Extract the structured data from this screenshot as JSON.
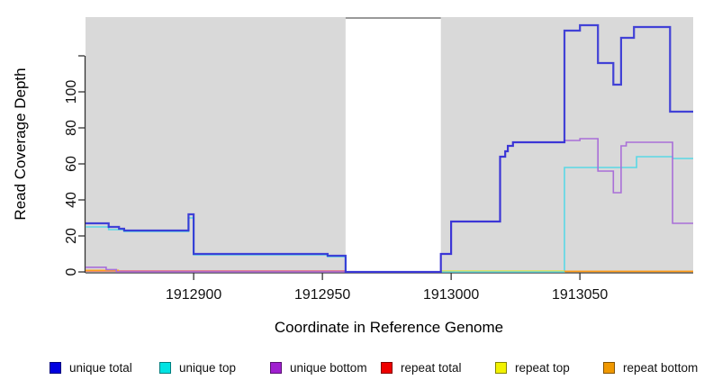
{
  "figure": {
    "xlabel": "Coordinate in Reference Genome",
    "ylabel": "Read Coverage Depth"
  },
  "chart_data": {
    "type": "line",
    "subtype": "step-function-coverage",
    "title": "",
    "xlabel": "Coordinate in Reference Genome",
    "ylabel": "Read Coverage Depth",
    "background_color": "#d9d9d9",
    "grid": false,
    "legend_position": "bottom",
    "x_axis": {
      "range": [
        1912858,
        1913094
      ],
      "ticks": [
        {
          "label": "1912900",
          "value": 1912900
        },
        {
          "label": "1912950",
          "value": 1912950
        },
        {
          "label": "1913000",
          "value": 1913000
        },
        {
          "label": "1913050",
          "value": 1913050
        }
      ]
    },
    "y_axis": {
      "range": [
        0,
        141
      ],
      "ticks": [
        {
          "label": "0",
          "value": 0
        },
        {
          "label": "20",
          "value": 20
        },
        {
          "label": "40",
          "value": 40
        },
        {
          "label": "60",
          "value": 60
        },
        {
          "label": "80",
          "value": 80
        },
        {
          "label": "100",
          "value": 100
        },
        {
          "label": "",
          "value": 120
        }
      ]
    },
    "no_data_region": {
      "start": 1912959,
      "end": 1912996,
      "fill": "#ffffff",
      "top_line_color": "#999999"
    },
    "series": [
      {
        "key": "unique_top",
        "label": "unique top",
        "swatch_color": "#00e3e3",
        "line_color": "#5ad8e6",
        "line_width": 1.6,
        "opacity": 1,
        "paths": [
          [
            [
              1912858,
              25
            ],
            [
              1912867,
              23.5
            ],
            [
              1912873,
              22.5
            ],
            [
              1912898,
              30
            ],
            [
              1912900,
              9.5
            ],
            [
              1912952,
              8.5
            ],
            [
              1912959,
              0
            ],
            [
              1913044,
              58
            ],
            [
              1913072,
              64
            ],
            [
              1913086,
              63
            ],
            [
              1913094,
              63
            ]
          ]
        ]
      },
      {
        "key": "repeat_total",
        "label": "repeat total",
        "swatch_color": "#ee0000",
        "line_color": "#e0607f",
        "line_width": 1.5,
        "opacity": 1,
        "paths": [
          [
            [
              1912858,
              0.5
            ],
            [
              1912959,
              0.5
            ]
          ]
        ]
      },
      {
        "key": "repeat_top",
        "label": "repeat top",
        "swatch_color": "#f2f200",
        "line_color": "#d8e04a",
        "line_width": 1.5,
        "opacity": 0.75,
        "paths": [
          [
            [
              1912996,
              0.6
            ],
            [
              1913044,
              0.6
            ]
          ]
        ]
      },
      {
        "key": "repeat_bottom",
        "label": "repeat bottom",
        "swatch_color": "#f09800",
        "line_color": "#ff9d1a",
        "line_width": 1.8,
        "opacity": 1,
        "paths": [
          [
            [
              1912858,
              0.8
            ],
            [
              1912871,
              0.8
            ]
          ],
          [
            [
              1913044,
              0.3
            ],
            [
              1913094,
              0.3
            ]
          ]
        ]
      },
      {
        "key": "unique_bottom",
        "label": "unique bottom",
        "swatch_color": "#a01fd0",
        "line_color": "#a96fd8",
        "line_width": 1.6,
        "opacity": 1,
        "paths": [
          [
            [
              1912858,
              2.6
            ],
            [
              1912866,
              1.3
            ],
            [
              1912870,
              0
            ],
            [
              1912996,
              10
            ],
            [
              1913000,
              28
            ],
            [
              1913019,
              64
            ],
            [
              1913021,
              67
            ],
            [
              1913022,
              70
            ],
            [
              1913024,
              72
            ],
            [
              1913044,
              73
            ],
            [
              1913050,
              74
            ],
            [
              1913057,
              56
            ],
            [
              1913063,
              44
            ],
            [
              1913066,
              70
            ],
            [
              1913068,
              72
            ],
            [
              1913086,
              27
            ],
            [
              1913094,
              27
            ]
          ]
        ]
      },
      {
        "key": "unique_total",
        "label": "unique total",
        "swatch_color": "#0000e0",
        "line_color": "#2b2bd5",
        "line_width": 2.2,
        "opacity": 0.88,
        "paths": [
          [
            [
              1912858,
              27
            ],
            [
              1912867,
              25
            ],
            [
              1912871,
              24
            ],
            [
              1912873,
              23
            ],
            [
              1912898,
              32
            ],
            [
              1912900,
              10
            ],
            [
              1912952,
              9
            ],
            [
              1912959,
              0
            ],
            [
              1912996,
              10
            ],
            [
              1913000,
              28
            ],
            [
              1913019,
              64
            ],
            [
              1913021,
              67
            ],
            [
              1913022,
              70
            ],
            [
              1913024,
              72
            ],
            [
              1913044,
              134
            ],
            [
              1913050,
              137
            ],
            [
              1913057,
              116
            ],
            [
              1913063,
              104
            ],
            [
              1913066,
              130
            ],
            [
              1913071,
              136
            ],
            [
              1913085,
              89
            ],
            [
              1913094,
              89
            ]
          ]
        ]
      }
    ],
    "legend_order": [
      "unique_total",
      "unique_top",
      "unique_bottom",
      "repeat_total",
      "repeat_top",
      "repeat_bottom"
    ]
  }
}
